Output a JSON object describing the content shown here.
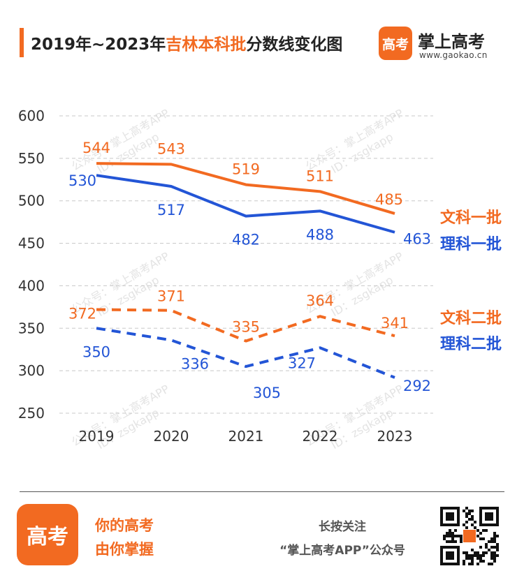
{
  "header": {
    "title_prefix": "2019年~2023年",
    "title_highlight": "吉林本科批",
    "title_suffix": "分数线变化图",
    "brand_logo_text": "高考",
    "brand_name": "掌上高考",
    "brand_url": "www.gaokao.cn"
  },
  "watermark": {
    "line1": "公众号：掌上高考APP",
    "line2": "ID：zsgkapp"
  },
  "colors": {
    "orange": "#f26a21",
    "blue": "#2355d6",
    "grid": "#c8c8c8",
    "text": "#333333"
  },
  "chart_data": {
    "type": "line",
    "categories": [
      "2019",
      "2020",
      "2021",
      "2022",
      "2023"
    ],
    "ylim": [
      250,
      600
    ],
    "yticks": [
      250,
      300,
      350,
      400,
      450,
      500,
      550,
      600
    ],
    "grid": "horizontal-dashed",
    "legend": "right, next to line ends",
    "series": [
      {
        "name": "文科一批",
        "values": [
          544,
          543,
          519,
          511,
          485
        ],
        "color": "#f26a21",
        "style": "solid"
      },
      {
        "name": "理科一批",
        "values": [
          530,
          517,
          482,
          488,
          463
        ],
        "color": "#2355d6",
        "style": "solid"
      },
      {
        "name": "文科二批",
        "values": [
          372,
          371,
          335,
          364,
          341
        ],
        "color": "#f26a21",
        "style": "dashed"
      },
      {
        "name": "理科二批",
        "values": [
          350,
          336,
          305,
          327,
          292
        ],
        "color": "#2355d6",
        "style": "dashed"
      }
    ]
  },
  "footer": {
    "logo_text": "高考",
    "slogan_line1": "你的高考",
    "slogan_line2": "由你掌握",
    "follow_line1": "长按关注",
    "follow_line2": "“掌上高考APP”公众号"
  }
}
